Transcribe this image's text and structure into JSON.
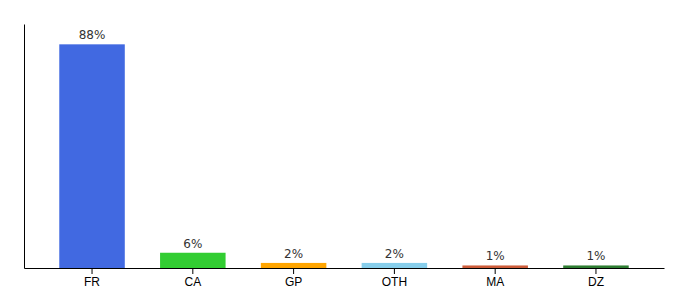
{
  "chart_data": {
    "type": "bar",
    "categories": [
      "FR",
      "CA",
      "GP",
      "OTH",
      "MA",
      "DZ"
    ],
    "values": [
      88,
      6,
      2,
      2,
      1,
      1
    ],
    "value_labels": [
      "88%",
      "6%",
      "2%",
      "2%",
      "1%",
      "1%"
    ],
    "colors": [
      "#4169e1",
      "#32cd32",
      "#ffa500",
      "#87ceeb",
      "#cd5c3a",
      "#2e7d32"
    ],
    "ylim": [
      0,
      96
    ],
    "data_labels": true,
    "tick_labels": "x",
    "grid": false
  }
}
